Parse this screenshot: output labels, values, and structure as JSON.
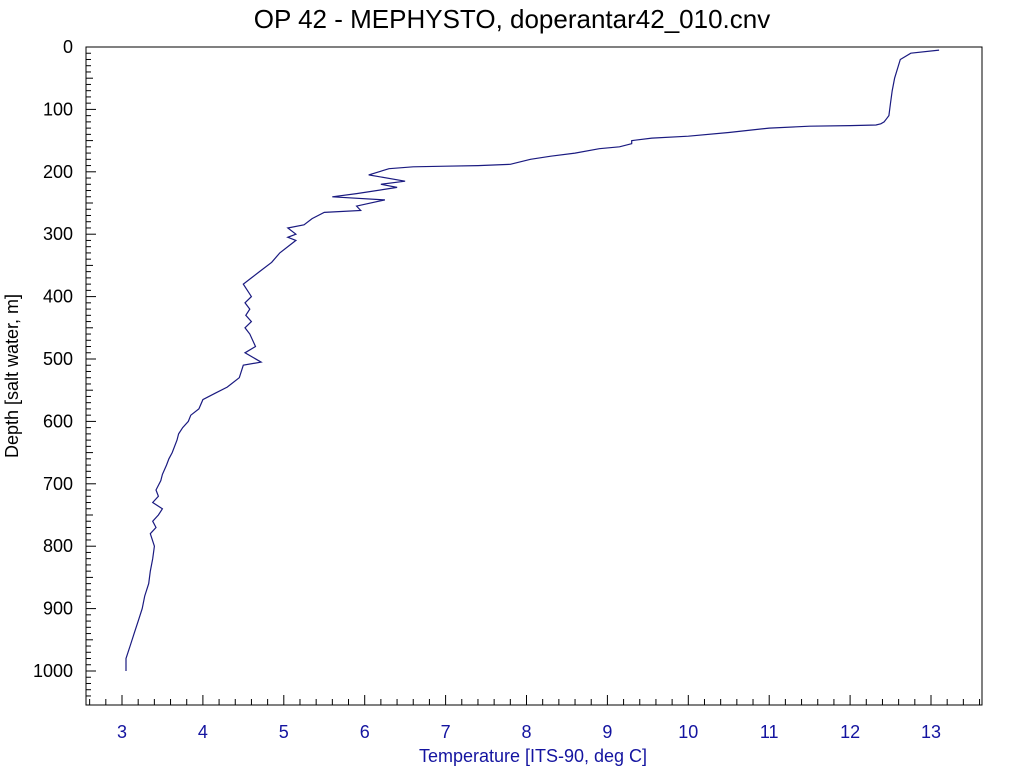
{
  "chart_data": {
    "type": "line",
    "title": "OP 42 - MEPHYSTO, doperantar42_010.cnv",
    "xlabel": "Temperature [ITS-90, deg C]",
    "ylabel": "Depth [salt water, m]",
    "xlim": [
      2.55,
      13.65
    ],
    "ylim": [
      1050,
      0
    ],
    "y_inverted": true,
    "x_ticks": [
      "3",
      "4",
      "5",
      "6",
      "7",
      "8",
      "9",
      "10",
      "11",
      "12",
      "13"
    ],
    "y_ticks": [
      "0",
      "100",
      "200",
      "300",
      "400",
      "500",
      "600",
      "700",
      "800",
      "900",
      "1000"
    ],
    "grid": false,
    "line_color": "#1a1a80",
    "axis_label_color": "#1414a0",
    "series": [
      {
        "x": [
          13.1,
          12.75,
          12.62,
          12.55,
          12.52,
          12.5,
          12.48,
          12.45,
          12.42,
          12.38,
          12.32,
          12.0,
          11.5,
          11.0,
          10.5,
          10.0,
          9.55,
          9.3,
          9.3,
          9.15,
          8.9,
          8.6,
          8.3,
          8.05,
          7.8,
          7.4,
          7.0,
          6.6,
          6.3,
          6.05,
          6.5,
          6.2,
          6.4,
          5.9,
          5.6,
          6.25,
          5.9,
          5.95,
          5.5,
          5.35,
          5.25,
          5.05,
          5.15,
          5.05,
          5.15,
          4.95,
          4.85,
          4.7,
          4.6,
          4.5,
          4.55,
          4.6,
          4.52,
          4.58,
          4.53,
          4.6,
          4.52,
          4.58,
          4.65,
          4.52,
          4.72,
          4.5,
          4.45,
          4.3,
          4.15,
          4.0,
          3.95,
          3.85,
          3.82,
          3.75,
          3.7,
          3.68,
          3.62,
          3.58,
          3.55,
          3.5,
          3.48,
          3.42,
          3.45,
          3.38,
          3.5,
          3.45,
          3.38,
          3.42,
          3.35,
          3.4,
          3.38,
          3.35,
          3.33,
          3.28,
          3.25,
          3.2,
          3.15,
          3.1,
          3.05,
          3.05
        ],
        "y": [
          5,
          10,
          20,
          50,
          70,
          90,
          110,
          115,
          120,
          123,
          125,
          126,
          127,
          130,
          137,
          143,
          146,
          150,
          155,
          160,
          163,
          170,
          175,
          180,
          188,
          190,
          191,
          192,
          195,
          205,
          215,
          220,
          225,
          235,
          240,
          245,
          255,
          262,
          265,
          275,
          285,
          290,
          300,
          305,
          310,
          330,
          345,
          360,
          370,
          380,
          390,
          400,
          410,
          420,
          430,
          440,
          450,
          460,
          480,
          490,
          505,
          510,
          530,
          545,
          555,
          565,
          580,
          590,
          600,
          610,
          620,
          630,
          650,
          660,
          670,
          685,
          695,
          710,
          720,
          730,
          740,
          750,
          760,
          770,
          780,
          800,
          820,
          840,
          860,
          880,
          900,
          920,
          940,
          960,
          980,
          1000
        ]
      }
    ]
  }
}
